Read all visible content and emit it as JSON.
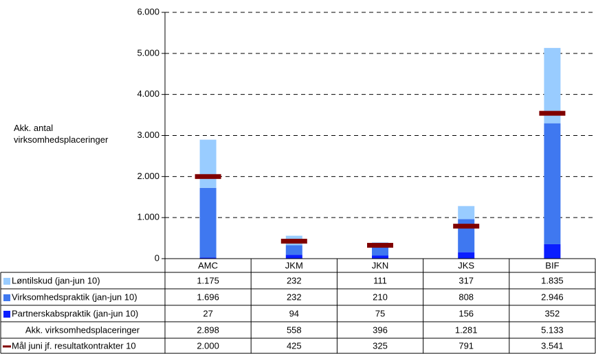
{
  "chart_data": {
    "type": "bar",
    "stacked": true,
    "y_label": "Akk. antal virksomhedsplaceringer",
    "categories": [
      "AMC",
      "JKM",
      "JKN",
      "JKS",
      "BIF"
    ],
    "series": [
      {
        "name": "Løntilskud (jan-jun 10)",
        "color": "#99ccff",
        "values": [
          1175,
          232,
          111,
          317,
          1835
        ],
        "value_labels": [
          "1.175",
          "232",
          "111",
          "317",
          "1.835"
        ]
      },
      {
        "name": "Virksomhedspraktik (jan-jun 10)",
        "color": "#3f78f0",
        "values": [
          1696,
          232,
          210,
          808,
          2946
        ],
        "value_labels": [
          "1.696",
          "232",
          "210",
          "808",
          "2.946"
        ]
      },
      {
        "name": "Partnerskabspraktik (jan-jun 10)",
        "color": "#0a1eff",
        "values": [
          27,
          94,
          75,
          156,
          352
        ],
        "value_labels": [
          "27",
          "94",
          "75",
          "156",
          "352"
        ]
      }
    ],
    "totals": {
      "name": "Akk. virksomhedsplaceringer",
      "values": [
        2898,
        558,
        396,
        1281,
        5133
      ],
      "value_labels": [
        "2.898",
        "558",
        "396",
        "1.281",
        "5.133"
      ]
    },
    "target": {
      "name": "Mål juni jf. resultatkontrakter 10",
      "color": "#800000",
      "values": [
        2000,
        425,
        325,
        791,
        3541
      ],
      "value_labels": [
        "2.000",
        "425",
        "325",
        "791",
        "3.541"
      ]
    },
    "ylim": [
      0,
      6000
    ],
    "yticks": [
      0,
      {
        "value": 1000,
        "label": "1.000"
      },
      {
        "value": 2000,
        "label": "2.000"
      },
      {
        "value": 3000,
        "label": "3.000"
      },
      {
        "value": 4000,
        "label": "4.000"
      },
      {
        "value": 5000,
        "label": "5.000"
      },
      {
        "value": 6000,
        "label": "6.000"
      }
    ],
    "grid": true
  }
}
